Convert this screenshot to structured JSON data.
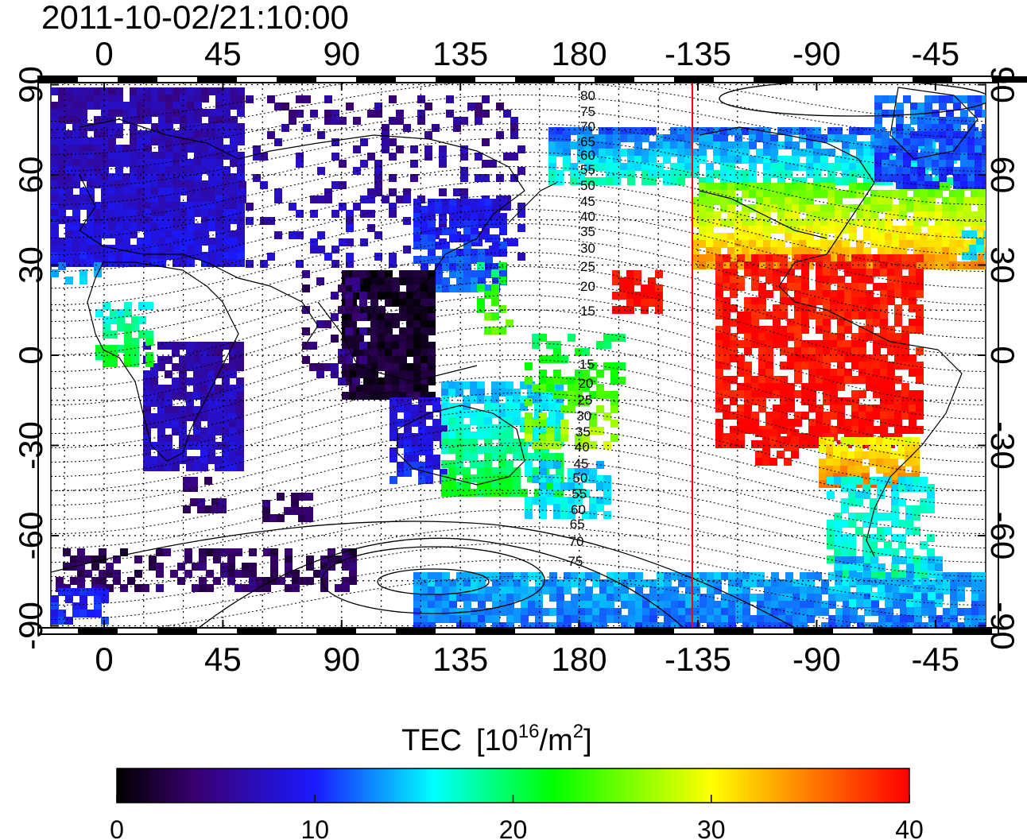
{
  "timestamp": "2011-10-02/21:10:00",
  "map": {
    "x_ticks": [
      "0",
      "45",
      "90",
      "135",
      "180",
      "-135",
      "-90",
      "-45"
    ],
    "y_ticks": [
      "90",
      "60",
      "30",
      "0",
      "-30",
      "-60",
      "-90"
    ],
    "meridian_marker_color": "#ff0000",
    "contour_labels": [
      "80",
      "75",
      "70",
      "65",
      "60",
      "55",
      "50",
      "45",
      "40",
      "35",
      "30",
      "25",
      "20",
      "15",
      "15",
      "20",
      "25",
      "30",
      "35",
      "40",
      "45",
      "50",
      "55",
      "60",
      "65",
      "70",
      "75"
    ]
  },
  "colorbar": {
    "title": "TEC",
    "unit_base": "[10",
    "unit_exp": "16",
    "unit_mid": "/m",
    "unit_exp2": "2",
    "unit_end": "]",
    "ticks": [
      "0",
      "10",
      "20",
      "30",
      "40"
    ],
    "range": [
      0,
      40
    ],
    "colors": [
      "#000000",
      "#3a0070",
      "#1a1aff",
      "#00ffff",
      "#00ff00",
      "#ffff00",
      "#ff8000",
      "#ff0000"
    ]
  }
}
